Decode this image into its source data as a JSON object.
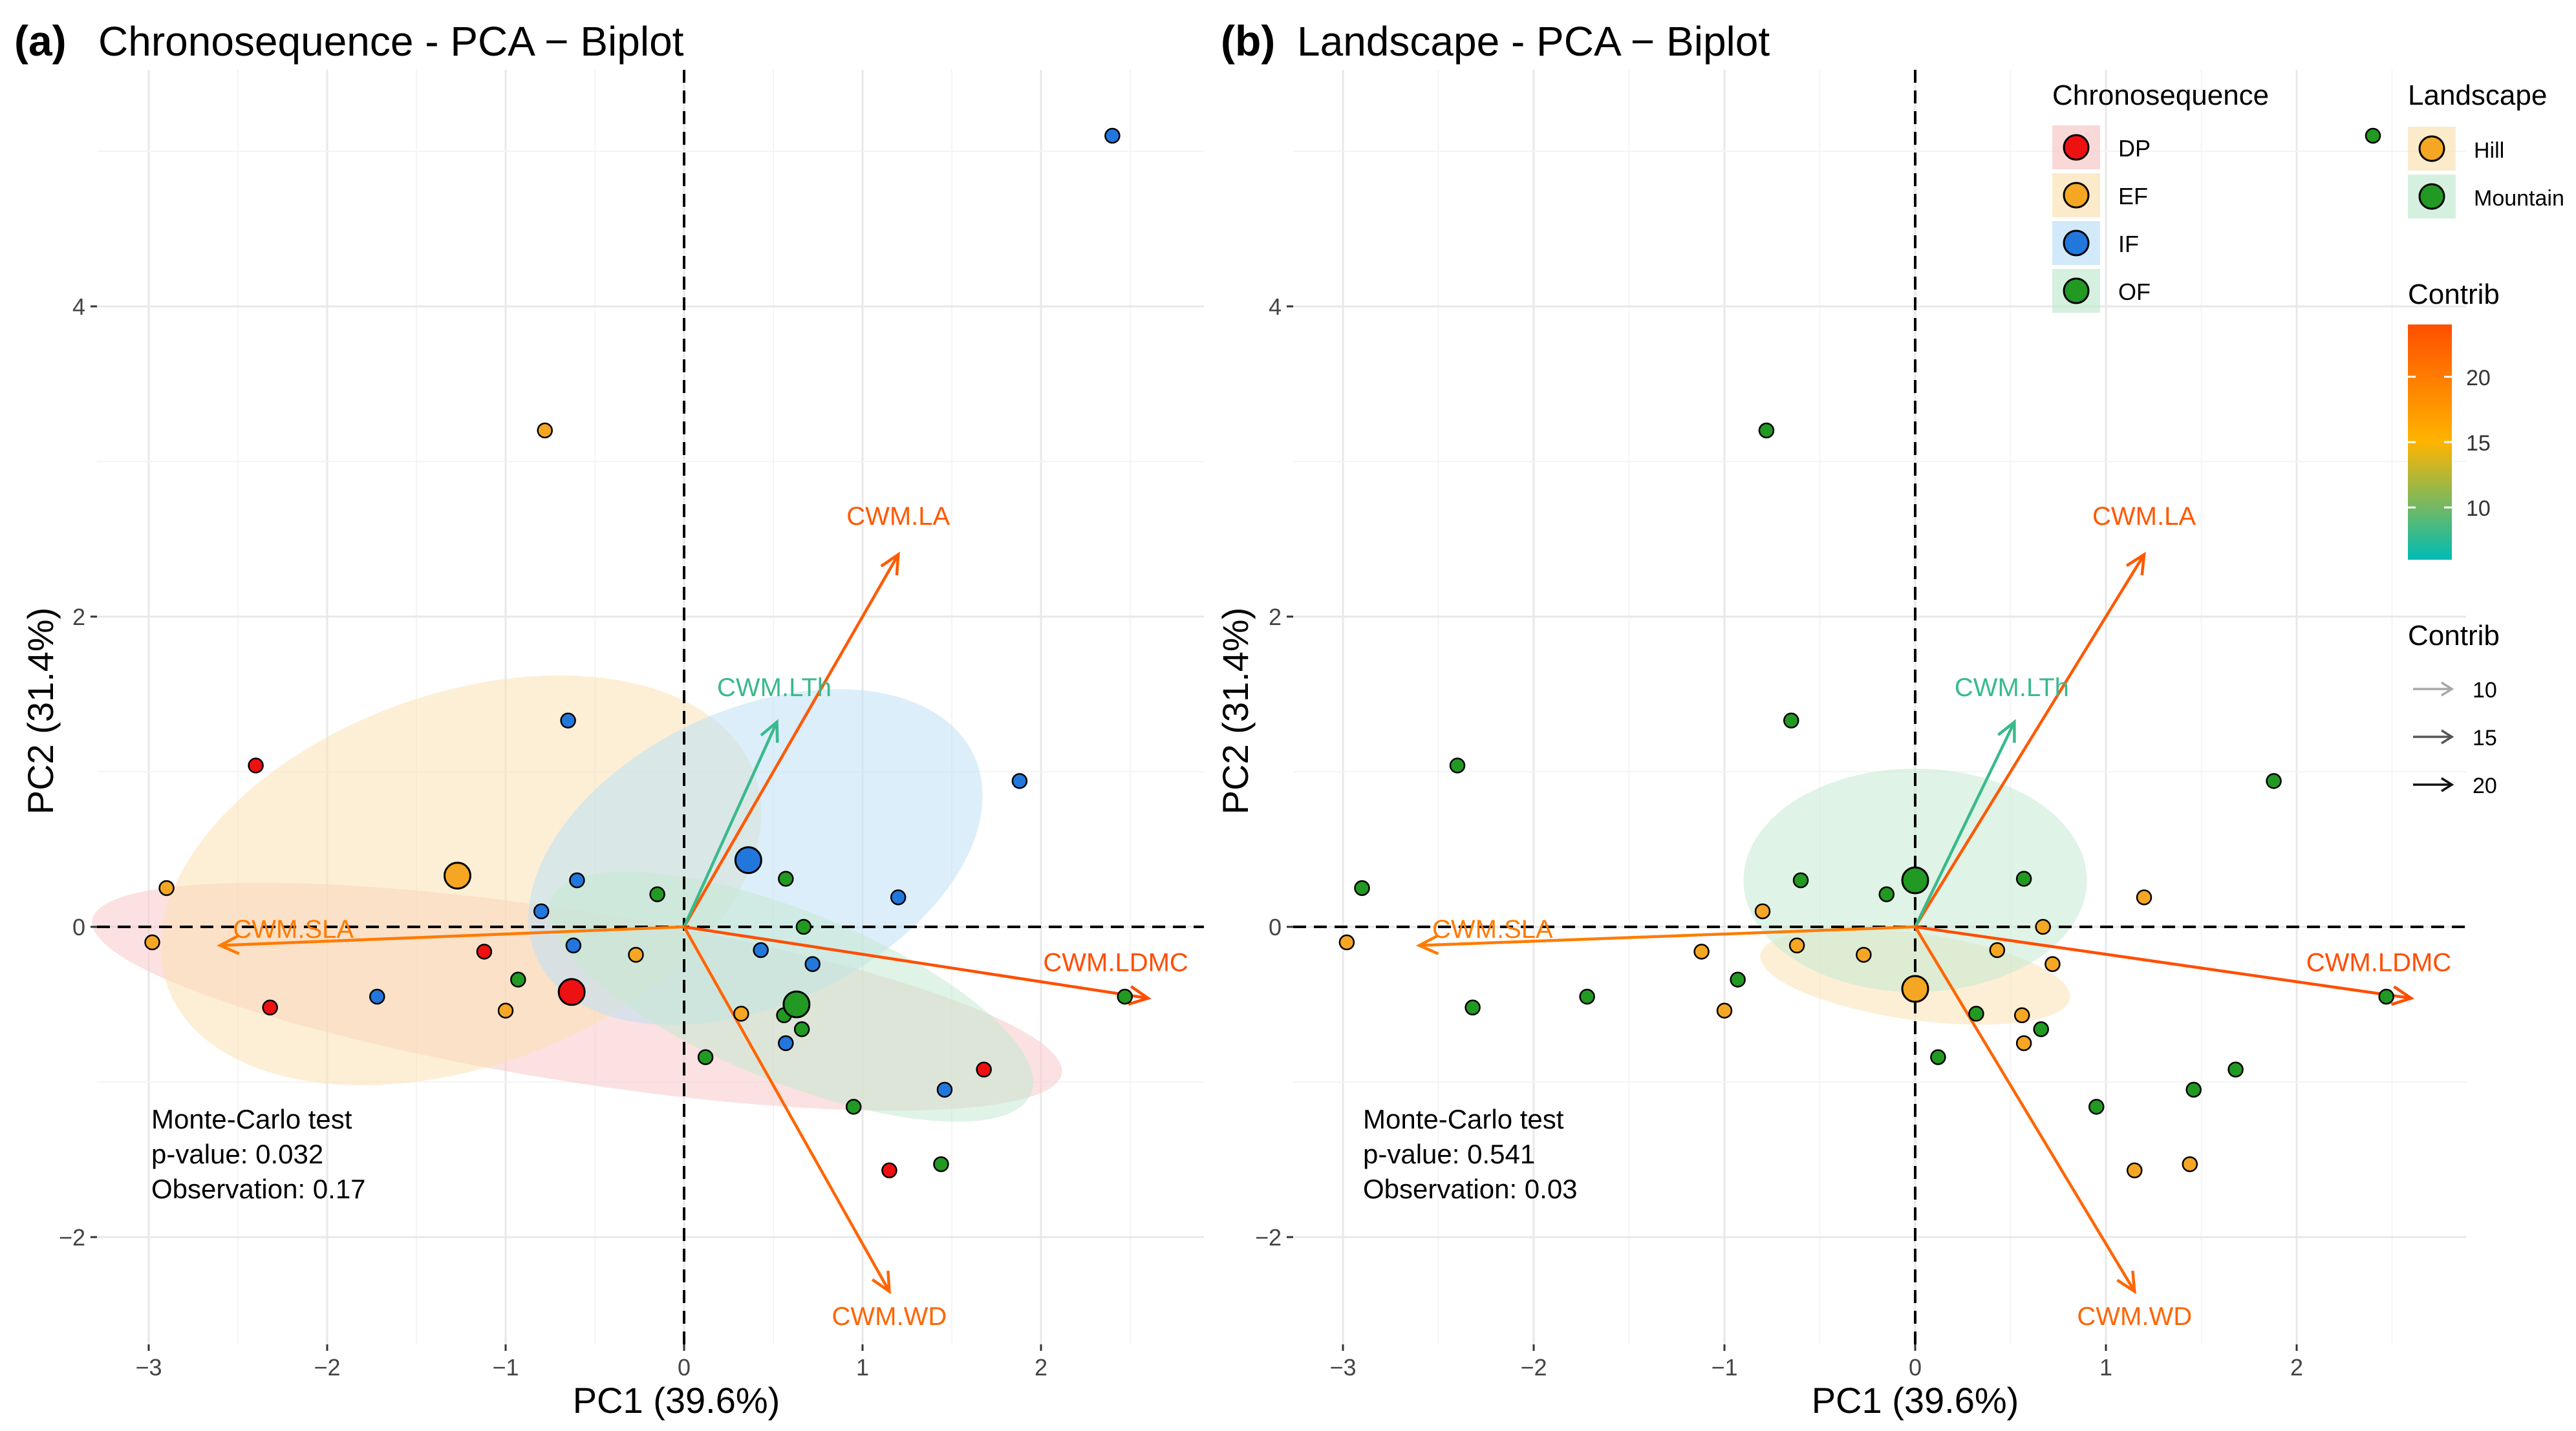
{
  "chart_data": [
    {
      "panel": "(a)",
      "title": "Chronosequence - PCA − Biplot",
      "type": "scatter",
      "xlabel": "PC1 (39.6%)",
      "ylabel": "PC2 (31.4%)",
      "xlim": [
        -3.3,
        2.9
      ],
      "ylim": [
        -2.7,
        5.3
      ],
      "xticks": [
        -3,
        -2,
        -1,
        0,
        1,
        2
      ],
      "yticks": [
        -2,
        0,
        2,
        4
      ],
      "grid": true,
      "groups": [
        {
          "name": "DP",
          "color": "#ee1111",
          "fill": "#f7c8c8",
          "ellipse": {
            "cx": -0.6,
            "cy": -0.45,
            "rx": 2.75,
            "ry": 0.55,
            "angle_deg": -9
          }
        },
        {
          "name": "EF",
          "color": "#f5a623",
          "fill": "#fbe2b5",
          "ellipse": {
            "cx": -1.25,
            "cy": 0.3,
            "rx": 1.75,
            "ry": 1.2,
            "angle_deg": 20
          }
        },
        {
          "name": "IF",
          "color": "#2277dd",
          "fill": "#bde0f5",
          "ellipse": {
            "cx": 0.4,
            "cy": 0.45,
            "rx": 1.35,
            "ry": 0.95,
            "angle_deg": 25
          }
        },
        {
          "name": "OF",
          "color": "#229922",
          "fill": "#c5ead2",
          "ellipse": {
            "cx": 0.6,
            "cy": -0.45,
            "rx": 1.45,
            "ry": 0.55,
            "angle_deg": -22
          }
        }
      ],
      "points": [
        {
          "x": 2.4,
          "y": 5.1,
          "group": "IF"
        },
        {
          "x": -0.78,
          "y": 3.2,
          "group": "EF"
        },
        {
          "x": -0.65,
          "y": 1.33,
          "group": "IF"
        },
        {
          "x": -2.4,
          "y": 1.04,
          "group": "DP"
        },
        {
          "x": 1.88,
          "y": 0.94,
          "group": "IF"
        },
        {
          "x": -2.9,
          "y": 0.25,
          "group": "EF"
        },
        {
          "x": -2.98,
          "y": -0.1,
          "group": "EF"
        },
        {
          "x": -0.6,
          "y": 0.3,
          "group": "IF"
        },
        {
          "x": -0.8,
          "y": 0.1,
          "group": "IF"
        },
        {
          "x": -0.15,
          "y": 0.21,
          "group": "OF"
        },
        {
          "x": 0.57,
          "y": 0.31,
          "group": "OF"
        },
        {
          "x": 1.2,
          "y": 0.19,
          "group": "IF"
        },
        {
          "x": 0.67,
          "y": 0.0,
          "group": "OF"
        },
        {
          "x": 0.43,
          "y": -0.15,
          "group": "IF"
        },
        {
          "x": 0.72,
          "y": -0.24,
          "group": "IF"
        },
        {
          "x": -0.62,
          "y": -0.12,
          "group": "IF"
        },
        {
          "x": -1.12,
          "y": -0.16,
          "group": "DP"
        },
        {
          "x": -0.27,
          "y": -0.18,
          "group": "EF"
        },
        {
          "x": -0.93,
          "y": -0.34,
          "group": "OF"
        },
        {
          "x": -1.72,
          "y": -0.45,
          "group": "IF"
        },
        {
          "x": -2.32,
          "y": -0.52,
          "group": "DP"
        },
        {
          "x": -1.0,
          "y": -0.54,
          "group": "EF"
        },
        {
          "x": 0.32,
          "y": -0.56,
          "group": "EF"
        },
        {
          "x": 0.56,
          "y": -0.57,
          "group": "OF"
        },
        {
          "x": 0.66,
          "y": -0.66,
          "group": "OF"
        },
        {
          "x": 0.57,
          "y": -0.75,
          "group": "IF"
        },
        {
          "x": 0.12,
          "y": -0.84,
          "group": "OF"
        },
        {
          "x": 1.68,
          "y": -0.92,
          "group": "DP"
        },
        {
          "x": 1.46,
          "y": -1.05,
          "group": "IF"
        },
        {
          "x": 0.95,
          "y": -1.16,
          "group": "OF"
        },
        {
          "x": 1.44,
          "y": -1.53,
          "group": "OF"
        },
        {
          "x": 1.15,
          "y": -1.57,
          "group": "DP"
        },
        {
          "x": 2.47,
          "y": -0.45,
          "group": "OF"
        }
      ],
      "centroids": [
        {
          "x": -0.63,
          "y": -0.42,
          "group": "DP"
        },
        {
          "x": -1.27,
          "y": 0.33,
          "group": "EF"
        },
        {
          "x": 0.36,
          "y": 0.43,
          "group": "IF"
        },
        {
          "x": 0.63,
          "y": -0.5,
          "group": "OF"
        }
      ],
      "arrows": [
        {
          "label": "CWM.LA",
          "x": 1.2,
          "y": 2.4,
          "contrib": 23
        },
        {
          "label": "CWM.LTh",
          "x": 0.52,
          "y": 1.32,
          "contrib": 8
        },
        {
          "label": "CWM.SLA",
          "x": -2.6,
          "y": -0.12,
          "contrib": 20
        },
        {
          "label": "CWM.LDMC",
          "x": 2.6,
          "y": -0.46,
          "contrib": 24
        },
        {
          "label": "CWM.WD",
          "x": 1.15,
          "y": -2.35,
          "contrib": 22
        }
      ],
      "annotation": [
        "Monte-Carlo test",
        "p-value: 0.032",
        "Observation: 0.17"
      ]
    },
    {
      "panel": "(b)",
      "title": "Landscape - PCA − Biplot",
      "type": "scatter",
      "xlabel": "PC1 (39.6%)",
      "ylabel": "PC2 (31.4%)",
      "xlim": [
        -3.3,
        2.9
      ],
      "ylim": [
        -2.7,
        5.3
      ],
      "xticks": [
        -3,
        -2,
        -1,
        0,
        1,
        2
      ],
      "yticks": [
        -2,
        0,
        2,
        4
      ],
      "grid": true,
      "groups": [
        {
          "name": "Hill",
          "color": "#f5a623",
          "fill": "#fbe2b5",
          "ellipse": {
            "cx": 0.0,
            "cy": -0.32,
            "rx": 0.82,
            "ry": 0.28,
            "angle_deg": -8
          }
        },
        {
          "name": "Mountain",
          "color": "#229922",
          "fill": "#c5ead2",
          "ellipse": {
            "cx": 0.0,
            "cy": 0.3,
            "rx": 0.9,
            "ry": 0.72,
            "angle_deg": 0
          }
        }
      ],
      "points": [
        {
          "x": 2.4,
          "y": 5.1,
          "group": "Mountain"
        },
        {
          "x": -0.78,
          "y": 3.2,
          "group": "Mountain"
        },
        {
          "x": -0.65,
          "y": 1.33,
          "group": "Mountain"
        },
        {
          "x": -2.4,
          "y": 1.04,
          "group": "Mountain"
        },
        {
          "x": 1.88,
          "y": 0.94,
          "group": "Mountain"
        },
        {
          "x": -2.9,
          "y": 0.25,
          "group": "Mountain"
        },
        {
          "x": -2.98,
          "y": -0.1,
          "group": "Hill"
        },
        {
          "x": -0.6,
          "y": 0.3,
          "group": "Mountain"
        },
        {
          "x": -0.8,
          "y": 0.1,
          "group": "Hill"
        },
        {
          "x": -0.15,
          "y": 0.21,
          "group": "Mountain"
        },
        {
          "x": 0.57,
          "y": 0.31,
          "group": "Mountain"
        },
        {
          "x": 1.2,
          "y": 0.19,
          "group": "Hill"
        },
        {
          "x": 0.67,
          "y": 0.0,
          "group": "Hill"
        },
        {
          "x": 0.43,
          "y": -0.15,
          "group": "Hill"
        },
        {
          "x": 0.72,
          "y": -0.24,
          "group": "Hill"
        },
        {
          "x": -0.62,
          "y": -0.12,
          "group": "Hill"
        },
        {
          "x": -1.12,
          "y": -0.16,
          "group": "Hill"
        },
        {
          "x": -0.27,
          "y": -0.18,
          "group": "Hill"
        },
        {
          "x": -0.93,
          "y": -0.34,
          "group": "Mountain"
        },
        {
          "x": -1.72,
          "y": -0.45,
          "group": "Mountain"
        },
        {
          "x": -2.32,
          "y": -0.52,
          "group": "Mountain"
        },
        {
          "x": -1.0,
          "y": -0.54,
          "group": "Hill"
        },
        {
          "x": 0.32,
          "y": -0.56,
          "group": "Mountain"
        },
        {
          "x": 0.56,
          "y": -0.57,
          "group": "Hill"
        },
        {
          "x": 0.66,
          "y": -0.66,
          "group": "Mountain"
        },
        {
          "x": 0.57,
          "y": -0.75,
          "group": "Hill"
        },
        {
          "x": 0.12,
          "y": -0.84,
          "group": "Mountain"
        },
        {
          "x": 1.68,
          "y": -0.92,
          "group": "Mountain"
        },
        {
          "x": 1.46,
          "y": -1.05,
          "group": "Mountain"
        },
        {
          "x": 0.95,
          "y": -1.16,
          "group": "Mountain"
        },
        {
          "x": 1.44,
          "y": -1.53,
          "group": "Hill"
        },
        {
          "x": 1.15,
          "y": -1.57,
          "group": "Hill"
        },
        {
          "x": 2.47,
          "y": -0.45,
          "group": "Mountain"
        }
      ],
      "centroids": [
        {
          "x": 0.0,
          "y": 0.3,
          "group": "Mountain"
        },
        {
          "x": 0.0,
          "y": -0.4,
          "group": "Hill"
        }
      ],
      "arrows": [
        {
          "label": "CWM.LA",
          "x": 1.2,
          "y": 2.4,
          "contrib": 23
        },
        {
          "label": "CWM.LTh",
          "x": 0.52,
          "y": 1.32,
          "contrib": 8
        },
        {
          "label": "CWM.SLA",
          "x": -2.6,
          "y": -0.12,
          "contrib": 20
        },
        {
          "label": "CWM.LDMC",
          "x": 2.6,
          "y": -0.46,
          "contrib": 24
        },
        {
          "label": "CWM.WD",
          "x": 1.15,
          "y": -2.35,
          "contrib": 22
        }
      ],
      "annotation": [
        "Monte-Carlo test",
        "p-value: 0.541",
        "Observation: 0.03"
      ]
    }
  ],
  "legends": {
    "chronosequence": {
      "title": "Chronosequence",
      "items": [
        "DP",
        "EF",
        "IF",
        "OF"
      ]
    },
    "landscape": {
      "title": "Landscape",
      "items": [
        "Hill",
        "Mountain"
      ]
    },
    "contrib_colorbar": {
      "title": "Contrib",
      "ticks": [
        10,
        15,
        20
      ],
      "range": [
        6,
        24
      ],
      "colors": [
        "#00bcb4",
        "#ffb400",
        "#ff4e00"
      ]
    },
    "contrib_arrows": {
      "title": "Contrib",
      "items": [
        10,
        15,
        20
      ],
      "colors": [
        "#a8a8a8",
        "#555555",
        "#111111"
      ]
    }
  },
  "colors": {
    "arrow_high": "#ff5a14",
    "arrow_low": "#34c3d6",
    "grid": "#ebebeb",
    "axis_dash": "#000000"
  }
}
